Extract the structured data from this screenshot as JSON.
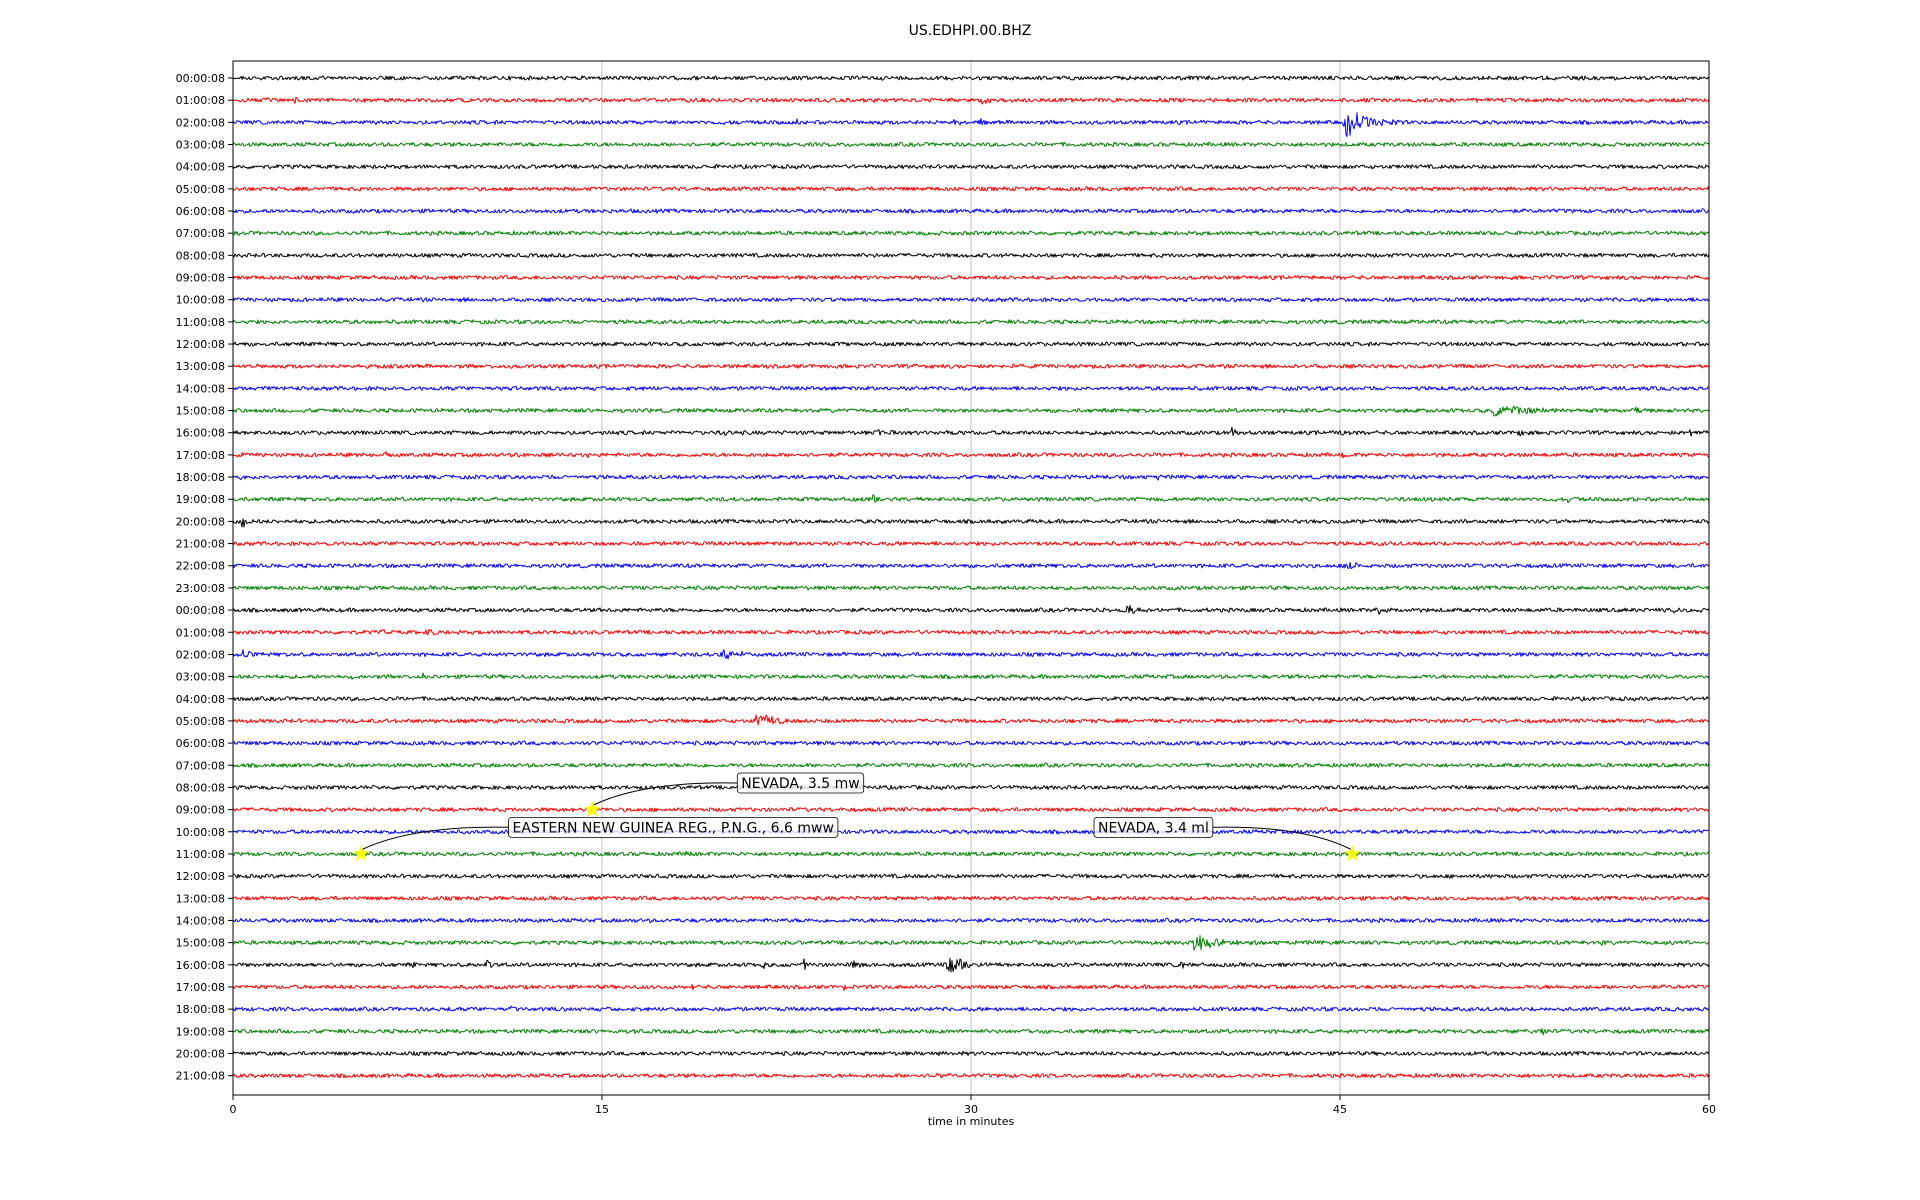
{
  "chart_data": {
    "type": "line",
    "title": "US.EDHPI.00.BHZ",
    "xlabel": "time in minutes",
    "ylabel": "",
    "xlim": [
      0,
      60
    ],
    "x_ticks": [
      0,
      15,
      30,
      45,
      60
    ],
    "grid_x": true,
    "grid_y": false,
    "legend": "none",
    "trace_colors": [
      "#000000",
      "#ff0000",
      "#0000ff",
      "#008000"
    ],
    "event_marker_color": "#ffff00",
    "row_labels": [
      "00:00:08",
      "01:00:08",
      "02:00:08",
      "03:00:08",
      "04:00:08",
      "05:00:08",
      "06:00:08",
      "07:00:08",
      "08:00:08",
      "09:00:08",
      "10:00:08",
      "11:00:08",
      "12:00:08",
      "13:00:08",
      "14:00:08",
      "15:00:08",
      "16:00:08",
      "17:00:08",
      "18:00:08",
      "19:00:08",
      "20:00:08",
      "21:00:08",
      "22:00:08",
      "23:00:08",
      "00:00:08",
      "01:00:08",
      "02:00:08",
      "03:00:08",
      "04:00:08",
      "05:00:08",
      "06:00:08",
      "07:00:08",
      "08:00:08",
      "09:00:08",
      "10:00:08",
      "11:00:08",
      "12:00:08",
      "13:00:08",
      "14:00:08",
      "15:00:08",
      "16:00:08",
      "17:00:08",
      "18:00:08",
      "19:00:08",
      "20:00:08",
      "21:00:08"
    ],
    "bursts": [
      {
        "row": 0,
        "minute": 15.9,
        "amp": 3,
        "dur": 0.3
      },
      {
        "row": 1,
        "minute": 0.6,
        "amp": 5,
        "dur": 0.3
      },
      {
        "row": 1,
        "minute": 2.5,
        "amp": 6,
        "dur": 0.4
      },
      {
        "row": 1,
        "minute": 30.3,
        "amp": 9,
        "dur": 0.8
      },
      {
        "row": 2,
        "minute": 22.9,
        "amp": 5,
        "dur": 0.4
      },
      {
        "row": 2,
        "minute": 29.3,
        "amp": 6,
        "dur": 0.6
      },
      {
        "row": 2,
        "minute": 30.4,
        "amp": 6,
        "dur": 0.5
      },
      {
        "row": 2,
        "minute": 45.2,
        "amp": 16,
        "dur": 2.2
      },
      {
        "row": 9,
        "minute": 36.1,
        "amp": 5,
        "dur": 0.3
      },
      {
        "row": 15,
        "minute": 51.2,
        "amp": 9,
        "dur": 3.5
      },
      {
        "row": 15,
        "minute": 57.0,
        "amp": 5,
        "dur": 0.5
      },
      {
        "row": 16,
        "minute": 20.0,
        "amp": 5,
        "dur": 0.4
      },
      {
        "row": 16,
        "minute": 26.2,
        "amp": 6,
        "dur": 1.2
      },
      {
        "row": 16,
        "minute": 29.0,
        "amp": 5,
        "dur": 0.4
      },
      {
        "row": 16,
        "minute": 35.3,
        "amp": 5,
        "dur": 0.4
      },
      {
        "row": 16,
        "minute": 40.6,
        "amp": 9,
        "dur": 0.5
      },
      {
        "row": 16,
        "minute": 44.9,
        "amp": 6,
        "dur": 0.8
      },
      {
        "row": 16,
        "minute": 52.2,
        "amp": 6,
        "dur": 0.6
      },
      {
        "row": 16,
        "minute": 59.2,
        "amp": 6,
        "dur": 0.5
      },
      {
        "row": 17,
        "minute": 6.2,
        "amp": 6,
        "dur": 0.3
      },
      {
        "row": 17,
        "minute": 11.6,
        "amp": 5,
        "dur": 0.3
      },
      {
        "row": 17,
        "minute": 14.4,
        "amp": 7,
        "dur": 0.3
      },
      {
        "row": 17,
        "minute": 45.1,
        "amp": 5,
        "dur": 0.5
      },
      {
        "row": 17,
        "minute": 59.8,
        "amp": 6,
        "dur": 0.3
      },
      {
        "row": 18,
        "minute": 0.2,
        "amp": 7,
        "dur": 0.3
      },
      {
        "row": 18,
        "minute": 37.6,
        "amp": 5,
        "dur": 0.3
      },
      {
        "row": 18,
        "minute": 47.1,
        "amp": 5,
        "dur": 0.4
      },
      {
        "row": 19,
        "minute": 26.0,
        "amp": 6,
        "dur": 0.8
      },
      {
        "row": 19,
        "minute": 54.2,
        "amp": 5,
        "dur": 0.5
      },
      {
        "row": 20,
        "minute": 0.3,
        "amp": 10,
        "dur": 0.6
      },
      {
        "row": 20,
        "minute": 11.7,
        "amp": 5,
        "dur": 0.4
      },
      {
        "row": 20,
        "minute": 31.2,
        "amp": 6,
        "dur": 0.4
      },
      {
        "row": 20,
        "minute": 34.3,
        "amp": 6,
        "dur": 0.5
      },
      {
        "row": 21,
        "minute": 27.6,
        "amp": 4,
        "dur": 0.3
      },
      {
        "row": 22,
        "minute": 43.2,
        "amp": 5,
        "dur": 0.6
      },
      {
        "row": 22,
        "minute": 45.3,
        "amp": 7,
        "dur": 1.0
      },
      {
        "row": 24,
        "minute": 7.8,
        "amp": 5,
        "dur": 0.4
      },
      {
        "row": 24,
        "minute": 35.4,
        "amp": 6,
        "dur": 0.5
      },
      {
        "row": 24,
        "minute": 36.3,
        "amp": 7,
        "dur": 1.3
      },
      {
        "row": 24,
        "minute": 46.5,
        "amp": 8,
        "dur": 1.6
      },
      {
        "row": 24,
        "minute": 58.5,
        "amp": 5,
        "dur": 0.6
      },
      {
        "row": 25,
        "minute": 6.0,
        "amp": 5,
        "dur": 0.5
      },
      {
        "row": 25,
        "minute": 7.9,
        "amp": 9,
        "dur": 0.5
      },
      {
        "row": 26,
        "minute": 0.4,
        "amp": 8,
        "dur": 0.5
      },
      {
        "row": 26,
        "minute": 19.9,
        "amp": 9,
        "dur": 1.5
      },
      {
        "row": 27,
        "minute": 4.8,
        "amp": 6,
        "dur": 0.4
      },
      {
        "row": 27,
        "minute": 7.7,
        "amp": 5,
        "dur": 0.3
      },
      {
        "row": 29,
        "minute": 21.2,
        "amp": 14,
        "dur": 1.4
      },
      {
        "row": 35,
        "minute": 18.4,
        "amp": 5,
        "dur": 0.4
      },
      {
        "row": 39,
        "minute": 39.0,
        "amp": 10,
        "dur": 2.5
      },
      {
        "row": 39,
        "minute": 55.6,
        "amp": 7,
        "dur": 0.4
      },
      {
        "row": 40,
        "minute": 7.3,
        "amp": 6,
        "dur": 0.4
      },
      {
        "row": 40,
        "minute": 10.3,
        "amp": 10,
        "dur": 0.4
      },
      {
        "row": 40,
        "minute": 21.5,
        "amp": 7,
        "dur": 0.4
      },
      {
        "row": 40,
        "minute": 23.2,
        "amp": 7,
        "dur": 0.6
      },
      {
        "row": 40,
        "minute": 25.1,
        "amp": 6,
        "dur": 1.4
      },
      {
        "row": 40,
        "minute": 29.1,
        "amp": 13,
        "dur": 1.4
      },
      {
        "row": 40,
        "minute": 30.6,
        "amp": 5,
        "dur": 0.4
      },
      {
        "row": 40,
        "minute": 38.5,
        "amp": 7,
        "dur": 0.4
      },
      {
        "row": 40,
        "minute": 48.8,
        "amp": 5,
        "dur": 0.4
      },
      {
        "row": 41,
        "minute": 18.6,
        "amp": 7,
        "dur": 0.3
      },
      {
        "row": 41,
        "minute": 24.8,
        "amp": 7,
        "dur": 0.3
      },
      {
        "row": 42,
        "minute": 8.7,
        "amp": 5,
        "dur": 0.3
      },
      {
        "row": 42,
        "minute": 11.3,
        "amp": 6,
        "dur": 0.5
      },
      {
        "row": 43,
        "minute": 16.3,
        "amp": 4,
        "dur": 0.3
      },
      {
        "row": 43,
        "minute": 32.3,
        "amp": 6,
        "dur": 0.6
      },
      {
        "row": 43,
        "minute": 53.2,
        "amp": 6,
        "dur": 0.5
      },
      {
        "row": 45,
        "minute": 28.6,
        "amp": 5,
        "dur": 0.5
      }
    ],
    "events": [
      {
        "label": "NEVADA, 3.5 mw",
        "row": 33,
        "minute": 14.6,
        "label_minute": 20.5,
        "label_row": 31.8
      },
      {
        "label": "EASTERN NEW GUINEA REG., P.N.G., 6.6 mww",
        "row": 35,
        "minute": 5.2,
        "label_minute": 11.2,
        "label_row": 33.8
      },
      {
        "label": "NEVADA, 3.4 ml",
        "row": 35,
        "minute": 45.5,
        "label_minute": 35.0,
        "label_row": 33.8
      }
    ]
  }
}
